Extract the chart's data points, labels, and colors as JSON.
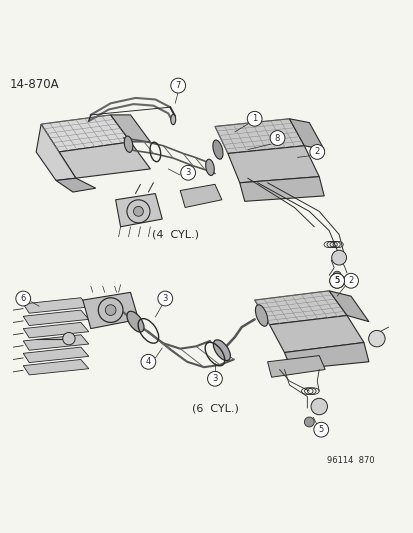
{
  "title_code": "14-870A",
  "subtitle_bottom": "96114  870",
  "label_4cyl": "(4  CYL.)",
  "label_6cyl": "(6  CYL.)",
  "bg_color": "#f5f5f0",
  "line_color": "#2a2a2a",
  "font_family": "DejaVu Sans",
  "title_fontsize": 8.5,
  "label_fontsize": 8,
  "callout_fontsize": 6.5,
  "fig_w": 4.14,
  "fig_h": 5.33,
  "dpi": 100
}
